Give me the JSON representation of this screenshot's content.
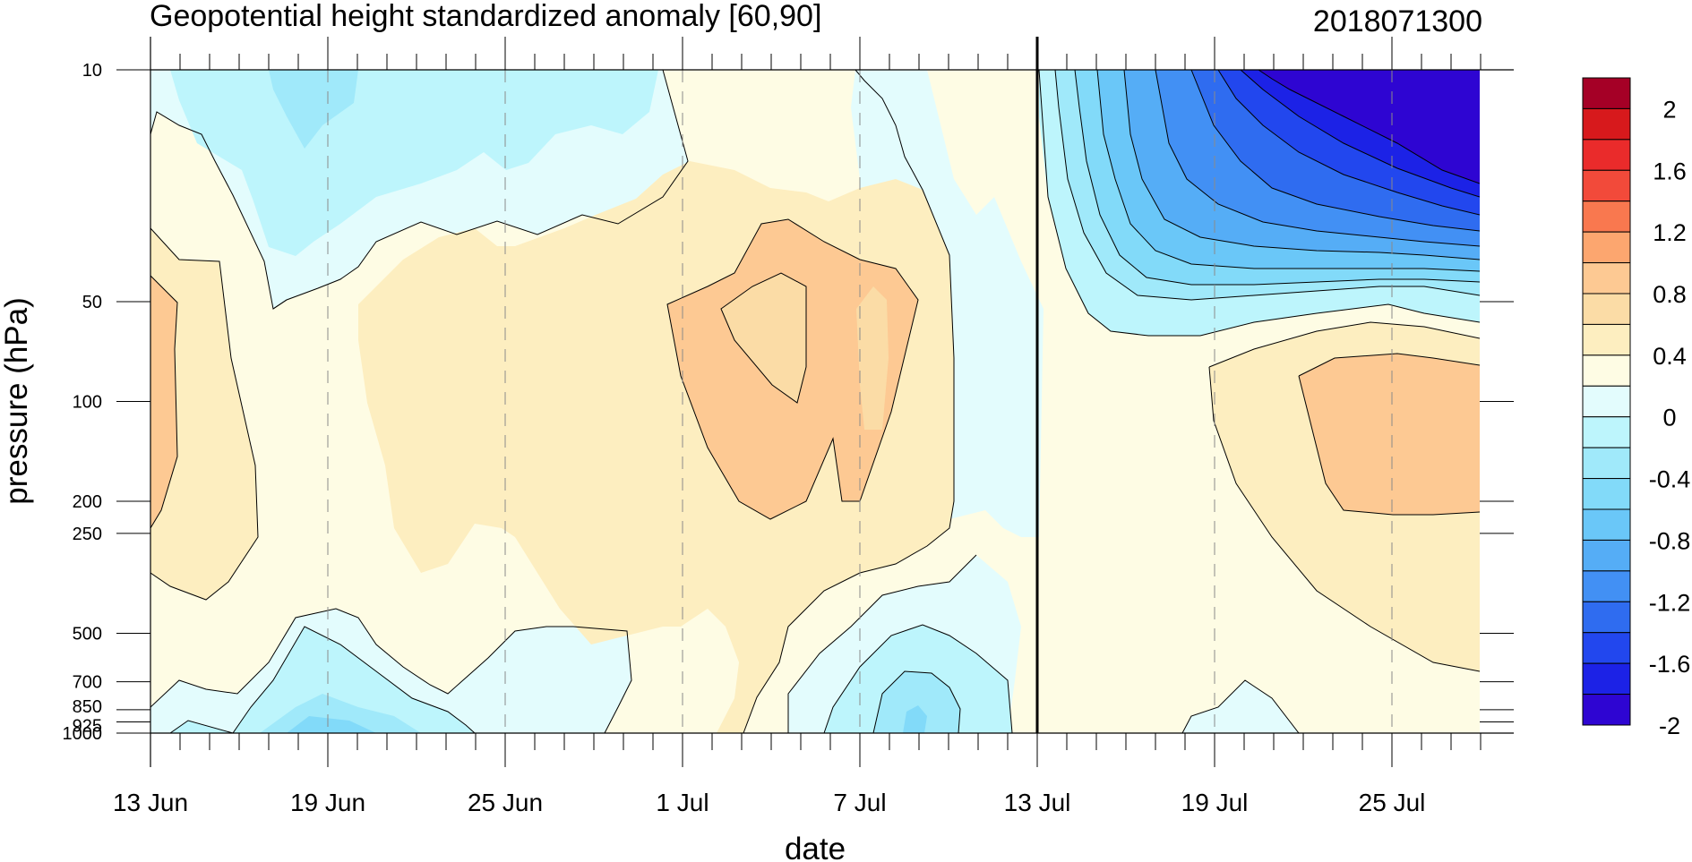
{
  "chart_data": {
    "type": "heatmap",
    "title": "Geopotential height standardized anomaly [60,90]",
    "subtitle": "2018071300",
    "xlabel": "date",
    "ylabel": "pressure (hPa)",
    "x_ticks": [
      "13 Jun",
      "19 Jun",
      "25 Jun",
      "1 Jul",
      "7 Jul",
      "13 Jul",
      "19 Jul",
      "25 Jul"
    ],
    "x_range": [
      "2018-06-13",
      "2018-07-28"
    ],
    "y_scale": "log",
    "y_reversed": true,
    "y_ticks": [
      10,
      50,
      100,
      200,
      250,
      500,
      700,
      850,
      925,
      1000
    ],
    "ylim": [
      1000,
      10
    ],
    "forecast_start_marker": "13 Jul",
    "colorbar": {
      "labels": [
        "2",
        "1.6",
        "1.2",
        "0.8",
        "0.4",
        "0",
        "-0.4",
        "-0.8",
        "-1.2",
        "-1.6",
        "-2"
      ],
      "colors": [
        "#a50026",
        "#d7191c",
        "#ea2b2b",
        "#f24a3a",
        "#f9784f",
        "#fca66f",
        "#fdc993",
        "#fbdca6",
        "#fdeec0",
        "#fefce4",
        "#e3fcfd",
        "#bdf5fc",
        "#a0e9fa",
        "#82daf9",
        "#6ac7f8",
        "#55adf6",
        "#4290f4",
        "#2f6cf0",
        "#2247ee",
        "#1c22e6",
        "#2e05d2"
      ]
    },
    "series": [
      {
        "value": 0.5,
        "x": [
          "2018-06-13",
          "2018-06-14",
          "2018-06-15",
          "2018-06-16",
          "2018-06-17",
          "2018-06-18"
        ],
        "y": [
          1000,
          850,
          500,
          200,
          100,
          50
        ]
      },
      {
        "value": -0.3,
        "x": [
          "2018-06-18",
          "2018-06-19",
          "2018-06-20",
          "2018-06-21",
          "2018-06-22",
          "2018-06-23"
        ],
        "y": [
          1000,
          925,
          850,
          925,
          1000,
          1000
        ]
      },
      {
        "value": 0.7,
        "x": [
          "2018-07-01",
          "2018-07-02",
          "2018-07-03",
          "2018-07-04",
          "2018-07-05",
          "2018-07-06",
          "2018-07-07",
          "2018-07-08"
        ],
        "y": [
          50,
          60,
          100,
          200,
          250,
          200,
          100,
          60
        ]
      },
      {
        "value": -0.4,
        "x": [
          "2018-07-06",
          "2018-07-07",
          "2018-07-08",
          "2018-07-09",
          "2018-07-10",
          "2018-07-11"
        ],
        "y": [
          1000,
          800,
          650,
          700,
          850,
          1000
        ]
      },
      {
        "value": -2.0,
        "x": [
          "2018-07-19",
          "2018-07-21",
          "2018-07-23",
          "2018-07-25",
          "2018-07-27",
          "2018-07-28"
        ],
        "y": [
          10,
          15,
          20,
          25,
          28,
          30
        ]
      },
      {
        "value": 0.7,
        "x": [
          "2018-07-21",
          "2018-07-23",
          "2018-07-25",
          "2018-07-27",
          "2018-07-28"
        ],
        "y": [
          100,
          200,
          250,
          250,
          200
        ]
      }
    ]
  }
}
